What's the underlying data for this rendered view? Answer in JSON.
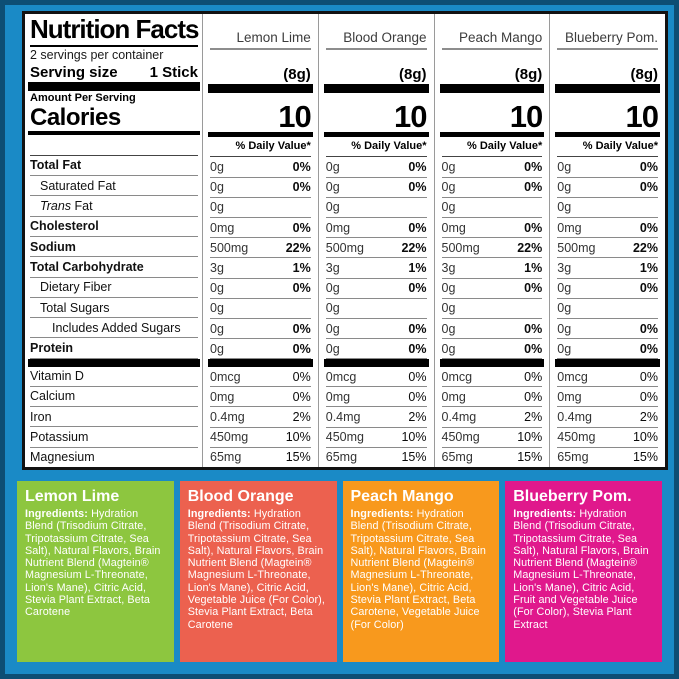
{
  "frame": {
    "inner_color": "#1a8ac6",
    "outer_color": "#0d4e74"
  },
  "panel": {
    "title": "Nutrition Facts",
    "servings_per_container": "2 servings per container",
    "serving_size_label": "Serving size",
    "serving_size_value": "1 Stick",
    "amount_per_serving": "Amount Per Serving",
    "calories_label": "Calories",
    "daily_value_header": "% Daily Value*",
    "flavors": [
      {
        "name": "Lemon Lime",
        "serving": "(8g)",
        "calories": "10"
      },
      {
        "name": "Blood Orange",
        "serving": "(8g)",
        "calories": "10"
      },
      {
        "name": "Peach Mango",
        "serving": "(8g)",
        "calories": "10"
      },
      {
        "name": "Blueberry Pom.",
        "serving": "(8g)",
        "calories": "10"
      }
    ],
    "rows": [
      {
        "label": "Total Fat",
        "amount": "0g",
        "dv": "0%"
      },
      {
        "label": "Saturated Fat",
        "amount": "0g",
        "dv": "0%"
      },
      {
        "label_italic": "Trans",
        "label": " Fat",
        "amount": "0g",
        "dv": ""
      },
      {
        "label": "Cholesterol",
        "amount": "0mg",
        "dv": "0%"
      },
      {
        "label": "Sodium",
        "amount": "500mg",
        "dv": "22%"
      },
      {
        "label": "Total Carbohydrate",
        "amount": "3g",
        "dv": "1%"
      },
      {
        "label": "Dietary Fiber",
        "amount": "0g",
        "dv": "0%"
      },
      {
        "label": "Total Sugars",
        "amount": "0g",
        "dv": ""
      },
      {
        "label": "Includes Added Sugars",
        "amount": "0g",
        "dv": "0%"
      },
      {
        "label": "Protein",
        "amount": "0g",
        "dv": "0%"
      }
    ],
    "micro_rows": [
      {
        "label": "Vitamin D",
        "amount": "0mcg",
        "dv": "0%"
      },
      {
        "label": "Calcium",
        "amount": "0mg",
        "dv": "0%"
      },
      {
        "label": "Iron",
        "amount": "0.4mg",
        "dv": "2%"
      },
      {
        "label": "Potassium",
        "amount": "450mg",
        "dv": "10%"
      },
      {
        "label": "Magnesium",
        "amount": "65mg",
        "dv": "15%"
      }
    ]
  },
  "ingredient_boxes": [
    {
      "name": "Lemon Lime",
      "color": "#8dc63f",
      "ingredients_label": "Ingredients:",
      "text": "Hydration Blend (Trisodium Citrate, Tripotassium Citrate, Sea Salt), Natural Flavors, Brain Nutrient Blend (Magtein® Magnesium L-Threonate, Lion's Mane), Citric Acid, Stevia Plant Extract, Beta Carotene"
    },
    {
      "name": "Blood Orange",
      "color": "#ec614f",
      "ingredients_label": "Ingredients:",
      "text": "Hydration Blend (Trisodium Citrate, Tripotassium Citrate, Sea Salt), Natural Flavors, Brain Nutrient Blend (Magtein® Magnesium L-Threonate, Lion's Mane), Citric Acid, Vegetable Juice (For Color), Stevia Plant Extract, Beta Carotene"
    },
    {
      "name": "Peach Mango",
      "color": "#f8991d",
      "ingredients_label": "Ingredients:",
      "text": "Hydration Blend (Trisodium Citrate, Tripotassium Citrate, Sea Salt), Natural Flavors, Brain Nutrient Blend (Magtein® Magnesium L-Threonate, Lion's Mane), Citric Acid, Stevia Plant Extract, Beta Carotene, Vegetable Juice (For Color)"
    },
    {
      "name": "Blueberry Pom.",
      "color": "#e0188c",
      "ingredients_label": "Ingredients:",
      "text": "Hydration Blend (Trisodium Citrate, Tripotassium Citrate, Sea Salt), Natural Flavors, Brain Nutrient Blend (Magtein® Magnesium L-Threonate, Lion's Mane), Citric Acid, Fruit and Vegetable Juice (For Color), Stevia Plant Extract"
    }
  ]
}
